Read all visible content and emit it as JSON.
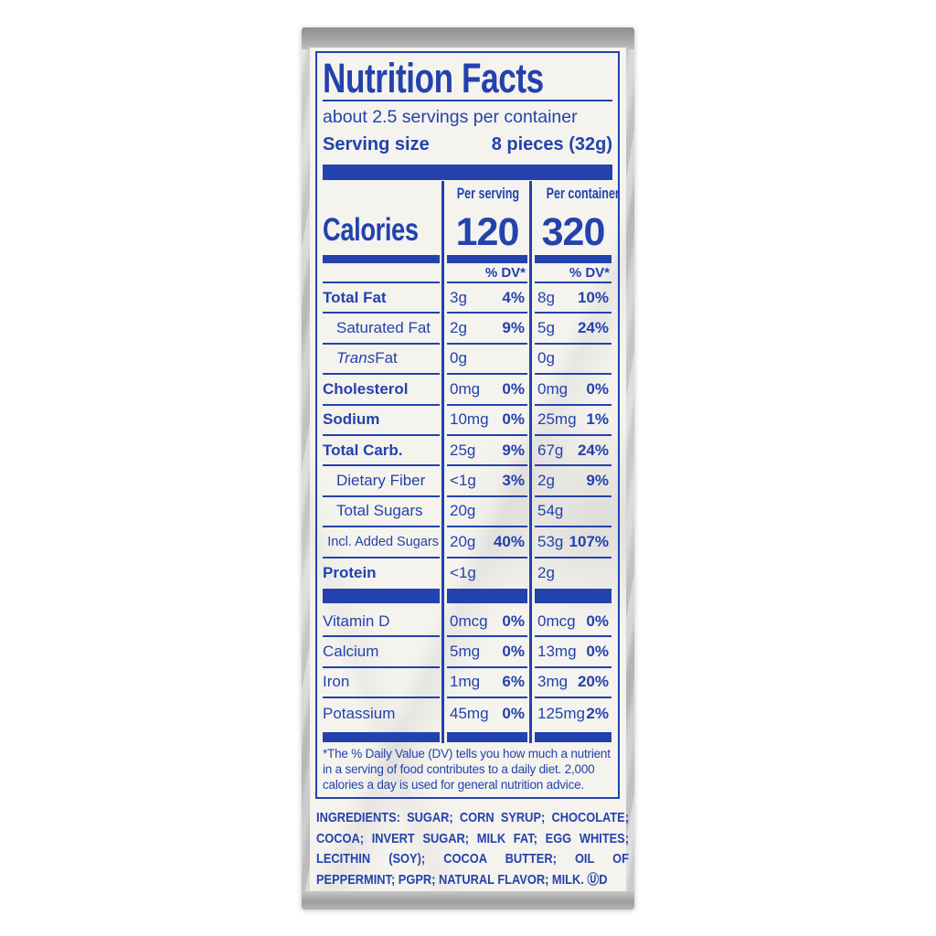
{
  "colors": {
    "blue": "#2342ad",
    "label_bg": "#f5f3ee",
    "foil_light": "#dedede",
    "foil_dark": "#8f8f8f"
  },
  "label": {
    "title": "Nutrition Facts",
    "servings_per_container": "about 2.5 servings per container",
    "serving_size_label": "Serving size",
    "serving_size_value": "8 pieces (32g)",
    "col_per_serving": "Per serving",
    "col_per_container": "Per container",
    "calories_label": "Calories",
    "calories_per_serving": "120",
    "calories_per_container": "320",
    "dv_header": "% DV*",
    "nutrient_rows": [
      {
        "label": "Total Fat",
        "bold": true,
        "indent": 0,
        "ps": "3g",
        "psdv": "4%",
        "pc": "8g",
        "pcdv": "10%"
      },
      {
        "label": "Saturated Fat",
        "indent": 1,
        "ps": "2g",
        "psdv": "9%",
        "pc": "5g",
        "pcdv": "24%"
      },
      {
        "label_italic": "Trans",
        "label": " Fat",
        "indent": 1,
        "ps": "0g",
        "psdv": "",
        "pc": "0g",
        "pcdv": ""
      },
      {
        "label": "Cholesterol",
        "bold": true,
        "indent": 0,
        "ps": "0mg",
        "psdv": "0%",
        "pc": "0mg",
        "pcdv": "0%"
      },
      {
        "label": "Sodium",
        "bold": true,
        "indent": 0,
        "ps": "10mg",
        "psdv": "0%",
        "pc": "25mg",
        "pcdv": "1%"
      },
      {
        "label": "Total Carb.",
        "bold": true,
        "indent": 0,
        "ps": "25g",
        "psdv": "9%",
        "pc": "67g",
        "pcdv": "24%"
      },
      {
        "label": "Dietary Fiber",
        "indent": 1,
        "ps": "<1g",
        "psdv": "3%",
        "pc": "2g",
        "pcdv": "9%"
      },
      {
        "label": "Total Sugars",
        "indent": 1,
        "ps": "20g",
        "psdv": "",
        "pc": "54g",
        "pcdv": ""
      },
      {
        "label": "Incl. Added Sugars",
        "indent": 2,
        "ps": "20g",
        "psdv": "40%",
        "pc": "53g",
        "pcdv": "107%"
      },
      {
        "label": "Protein",
        "bold": true,
        "indent": 0,
        "ps": "<1g",
        "psdv": "",
        "pc": "2g",
        "pcdv": ""
      }
    ],
    "vitamin_rows": [
      {
        "label": "Vitamin D",
        "ps": "0mcg",
        "psdv": "0%",
        "pc": "0mcg",
        "pcdv": "0%"
      },
      {
        "label": "Calcium",
        "ps": "5mg",
        "psdv": "0%",
        "pc": "13mg",
        "pcdv": "0%"
      },
      {
        "label": "Iron",
        "ps": "1mg",
        "psdv": "6%",
        "pc": "3mg",
        "pcdv": "20%"
      },
      {
        "label": "Potassium",
        "ps": "45mg",
        "psdv": "0%",
        "pc": "125mg",
        "pcdv": "2%"
      }
    ],
    "footnote": "*The % Daily Value (DV) tells you how much a nutrient in a serving of food contributes to a daily diet. 2,000 calories a day is used for general nutrition advice.",
    "ingredients_lines": [
      "INGREDIENTS: SUGAR; CORN SYRUP; CHOCOLATE;",
      "COCOA; INVERT SUGAR; MILK FAT; EGG WHITES;",
      "LECITHIN (SOY); COCOA BUTTER; OIL OF",
      "PEPPERMINT; PGPR; NATURAL FLAVOR; MILK. ⓊD"
    ]
  }
}
